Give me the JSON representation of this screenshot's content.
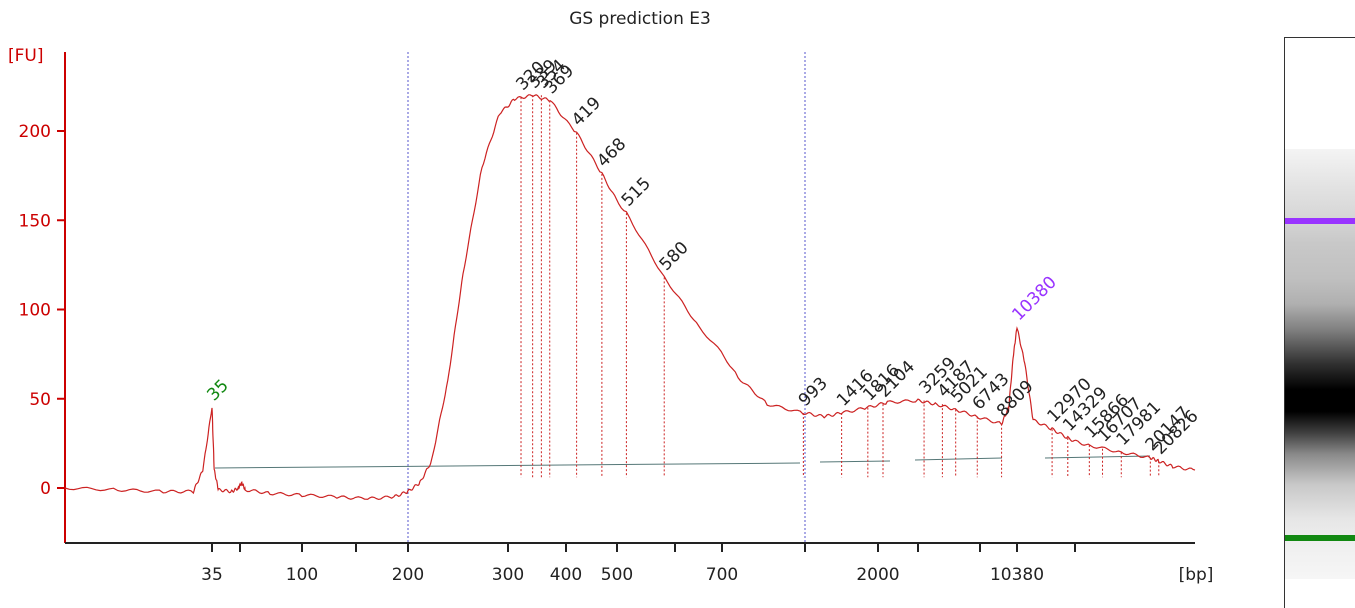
{
  "chart_data": {
    "type": "line",
    "title": "GS prediction E3",
    "ylabel": "[FU]",
    "xlabel": "[bp]",
    "ylim": [
      -30,
      245
    ],
    "yticks": [
      0,
      50,
      100,
      150,
      200
    ],
    "x_scale": "log-bp",
    "xticks": [
      {
        "label": "35",
        "bp": 35
      },
      {
        "label": "",
        "bp": 50
      },
      {
        "label": "100",
        "bp": 100
      },
      {
        "label": "",
        "bp": 150
      },
      {
        "label": "200",
        "bp": 200
      },
      {
        "label": "300",
        "bp": 300
      },
      {
        "label": "400",
        "bp": 400
      },
      {
        "label": "500",
        "bp": 500
      },
      {
        "label": "",
        "bp": 600
      },
      {
        "label": "700",
        "bp": 700
      },
      {
        "label": "",
        "bp": 1000
      },
      {
        "label": "2000",
        "bp": 2000
      },
      {
        "label": "",
        "bp": 3000
      },
      {
        "label": "",
        "bp": 7000
      },
      {
        "label": "10380",
        "bp": 10380
      },
      {
        "label": "",
        "bp": 15000
      }
    ],
    "region_lines_bp": [
      200,
      1000
    ],
    "series": [
      {
        "color": "#cc2222",
        "points": [
          [
            22,
            0
          ],
          [
            26,
            -1
          ],
          [
            30,
            -2
          ],
          [
            33,
            -2
          ],
          [
            34,
            10
          ],
          [
            35,
            45
          ],
          [
            36,
            10
          ],
          [
            38,
            -1
          ],
          [
            45,
            -2
          ],
          [
            49,
            0
          ],
          [
            51,
            3
          ],
          [
            53,
            -1
          ],
          [
            70,
            -3
          ],
          [
            100,
            -4
          ],
          [
            130,
            -5
          ],
          [
            160,
            -6
          ],
          [
            185,
            -5
          ],
          [
            200,
            -2
          ],
          [
            210,
            3
          ],
          [
            220,
            15
          ],
          [
            235,
            60
          ],
          [
            250,
            120
          ],
          [
            270,
            180
          ],
          [
            290,
            210
          ],
          [
            310,
            218
          ],
          [
            340,
            220
          ],
          [
            370,
            217
          ],
          [
            419,
            199
          ],
          [
            468,
            176
          ],
          [
            515,
            154
          ],
          [
            580,
            118
          ],
          [
            650,
            90
          ],
          [
            750,
            62
          ],
          [
            850,
            47
          ],
          [
            993,
            42
          ],
          [
            1200,
            40
          ],
          [
            1416,
            42
          ],
          [
            1800,
            45
          ],
          [
            2200,
            48
          ],
          [
            3000,
            49
          ],
          [
            3800,
            47
          ],
          [
            5000,
            44
          ],
          [
            6700,
            40
          ],
          [
            8809,
            36
          ],
          [
            9500,
            45
          ],
          [
            10000,
            75
          ],
          [
            10380,
            90
          ],
          [
            10900,
            70
          ],
          [
            11500,
            38
          ],
          [
            12970,
            33
          ],
          [
            14329,
            28
          ],
          [
            15800,
            24
          ],
          [
            17981,
            20
          ],
          [
            20147,
            17
          ],
          [
            20826,
            15
          ],
          [
            22000,
            12
          ],
          [
            24000,
            10
          ]
        ]
      }
    ],
    "peaks": [
      {
        "label": "35",
        "bp": 35,
        "fu": 45,
        "color": "green"
      },
      {
        "label": "320",
        "bp": 320,
        "fu": 219,
        "color": "black"
      },
      {
        "label": "339",
        "bp": 339,
        "fu": 220,
        "color": "black"
      },
      {
        "label": "354",
        "bp": 354,
        "fu": 220,
        "color": "black"
      },
      {
        "label": "369",
        "bp": 369,
        "fu": 217,
        "color": "black"
      },
      {
        "label": "419",
        "bp": 419,
        "fu": 199,
        "color": "black"
      },
      {
        "label": "468",
        "bp": 468,
        "fu": 176,
        "color": "black"
      },
      {
        "label": "515",
        "bp": 515,
        "fu": 154,
        "color": "black"
      },
      {
        "label": "580",
        "bp": 580,
        "fu": 118,
        "color": "black"
      },
      {
        "label": "993",
        "bp": 993,
        "fu": 42,
        "color": "black"
      },
      {
        "label": "1416",
        "bp": 1416,
        "fu": 42,
        "color": "black"
      },
      {
        "label": "1816",
        "bp": 1816,
        "fu": 45,
        "color": "black"
      },
      {
        "label": "2104",
        "bp": 2104,
        "fu": 47,
        "color": "black"
      },
      {
        "label": "3259",
        "bp": 3259,
        "fu": 49,
        "color": "black"
      },
      {
        "label": "4187",
        "bp": 4187,
        "fu": 47,
        "color": "black"
      },
      {
        "label": "5021",
        "bp": 5021,
        "fu": 44,
        "color": "black"
      },
      {
        "label": "6743",
        "bp": 6743,
        "fu": 40,
        "color": "black"
      },
      {
        "label": "8809",
        "bp": 8809,
        "fu": 36,
        "color": "black"
      },
      {
        "label": "10380",
        "bp": 10380,
        "fu": 90,
        "color": "purple"
      },
      {
        "label": "12970",
        "bp": 12970,
        "fu": 33,
        "color": "black"
      },
      {
        "label": "14329",
        "bp": 14329,
        "fu": 28,
        "color": "black"
      },
      {
        "label": "15866",
        "bp": 15866,
        "fu": 24,
        "color": "black"
      },
      {
        "label": "16707",
        "bp": 16707,
        "fu": 22,
        "color": "black"
      },
      {
        "label": "17981",
        "bp": 17981,
        "fu": 20,
        "color": "black"
      },
      {
        "label": "20147",
        "bp": 20147,
        "fu": 17,
        "color": "black"
      },
      {
        "label": "20826",
        "bp": 20826,
        "fu": 15,
        "color": "black"
      }
    ],
    "colors": {
      "trace": "#cc2222",
      "axis": "#cc0000",
      "region_line": "#5555cc",
      "baseline": "#557777",
      "lower_marker": "#118811",
      "upper_marker": "#9933ff"
    }
  },
  "gel": {
    "upper_marker_color": "#9933ff",
    "lower_marker_color": "#118811"
  }
}
